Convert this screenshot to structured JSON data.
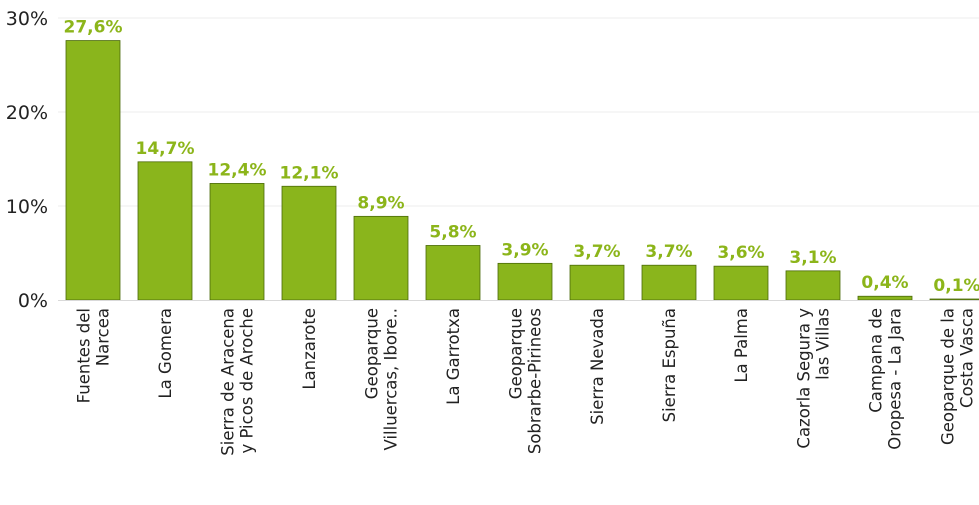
{
  "chart_data": {
    "type": "bar",
    "title": "",
    "xlabel": "",
    "ylabel": "",
    "ylim": [
      0,
      30
    ],
    "yticks": [
      "0%",
      "10%",
      "20%",
      "30%"
    ],
    "grid": true,
    "legend": "none",
    "bar_color": "#8ab51c",
    "bar_edge_color": "#4a6a08",
    "label_color": "#8cb51a",
    "categories": [
      [
        "Fuentes del",
        "Narcea"
      ],
      [
        "La Gomera"
      ],
      [
        "Sierra de Aracena",
        "y Picos de Aroche"
      ],
      [
        "Lanzarote"
      ],
      [
        "Geoparque",
        "Villuercas, Ibore.."
      ],
      [
        "La Garrotxa"
      ],
      [
        "Geoparque",
        "Sobrarbe-Pirineos"
      ],
      [
        "Sierra Nevada"
      ],
      [
        "Sierra Espuña"
      ],
      [
        "La Palma"
      ],
      [
        "Cazorla Segura y",
        "las Villas"
      ],
      [
        "Campana de",
        "Oropesa - La Jara"
      ],
      [
        "Geoparque de la",
        "Costa Vasca"
      ]
    ],
    "values": [
      27.6,
      14.7,
      12.4,
      12.1,
      8.9,
      5.8,
      3.9,
      3.7,
      3.7,
      3.6,
      3.1,
      0.4,
      0.1
    ],
    "value_labels": [
      "27,6%",
      "14,7%",
      "12,4%",
      "12,1%",
      "8,9%",
      "5,8%",
      "3,9%",
      "3,7%",
      "3,7%",
      "3,6%",
      "3,1%",
      "0,4%",
      "0,1%"
    ]
  }
}
